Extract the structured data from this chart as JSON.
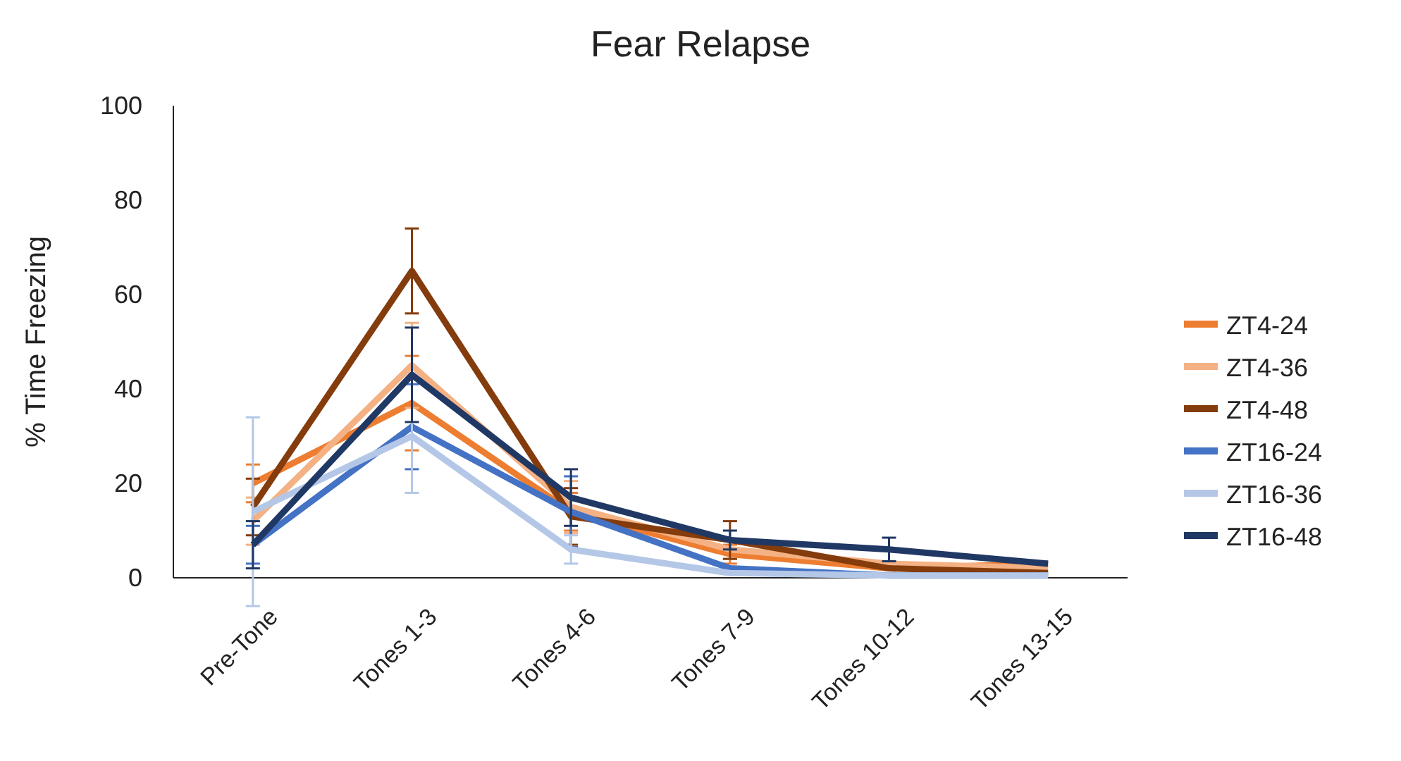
{
  "chart_data": {
    "type": "line",
    "title": "Fear Relapse",
    "ylabel": "% Time Freezing",
    "categories": [
      "Pre-Tone",
      "Tones 1-3",
      "Tones 4-6",
      "Tones 7-9",
      "Tones 10-12",
      "Tones 13-15"
    ],
    "ylim": [
      0,
      100
    ],
    "yticks": [
      0,
      20,
      40,
      60,
      80,
      100
    ],
    "grid": false,
    "legend": "right",
    "marker": "none",
    "line_style": "solid",
    "series": [
      {
        "name": "ZT4-24",
        "color": "#ed7d31",
        "values": [
          20,
          37,
          14,
          5,
          2,
          3
        ],
        "errors": [
          4,
          10,
          4,
          2,
          null,
          null
        ]
      },
      {
        "name": "ZT4-36",
        "color": "#f4b183",
        "values": [
          12,
          45,
          15,
          6,
          3,
          2
        ],
        "errors": [
          5,
          9,
          5.5,
          2,
          null,
          null
        ]
      },
      {
        "name": "ZT4-48",
        "color": "#843c0c",
        "values": [
          15,
          65,
          13,
          8,
          2,
          1
        ],
        "errors": [
          6,
          9,
          6,
          4,
          null,
          null
        ]
      },
      {
        "name": "ZT16-24",
        "color": "#4472c4",
        "values": [
          7,
          32,
          14,
          2,
          0.5,
          0.5
        ],
        "errors": [
          4,
          9,
          7.5,
          null,
          null,
          null
        ]
      },
      {
        "name": "ZT16-36",
        "color": "#b4c7e7",
        "values": [
          14,
          30,
          6,
          1,
          0.5,
          0.5
        ],
        "errors": [
          20,
          12,
          3,
          null,
          null,
          null
        ]
      },
      {
        "name": "ZT16-48",
        "color": "#203864",
        "values": [
          7,
          43,
          17,
          8,
          6,
          3
        ],
        "errors": [
          5,
          10,
          6,
          2,
          2.5,
          null
        ]
      }
    ]
  }
}
